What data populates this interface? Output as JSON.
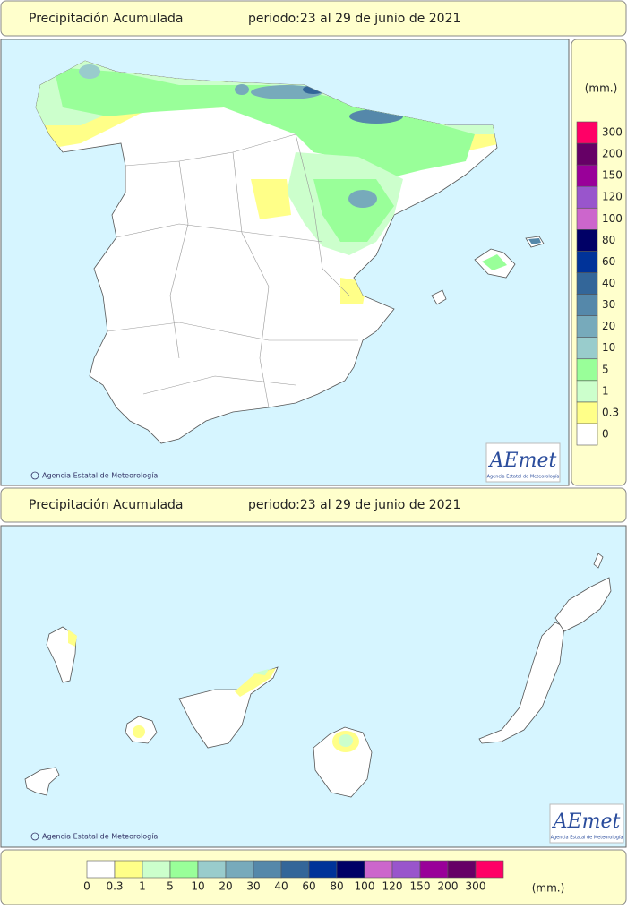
{
  "panels": [
    {
      "header": {
        "title": "Precipitación Acumulada",
        "period": "periodo:23 al 29 de junio de 2021"
      },
      "credit": "Agencia Estatal de Meteorología",
      "logo": {
        "name": "AEmet",
        "subtitle": "Agencia Estatal de Meteorología"
      }
    },
    {
      "header": {
        "title": "Precipitación Acumulada",
        "period": "periodo:23 al 29 de junio de 2021"
      },
      "credit": "Agencia Estatal de Meteorología",
      "logo": {
        "name": "AEmet",
        "subtitle": "Agencia Estatal de Meteorología"
      }
    }
  ],
  "legend": {
    "unit": "(mm.)",
    "levels": [
      {
        "value": 0,
        "color": "#ffffff"
      },
      {
        "value": 0.3,
        "color": "#ffff88"
      },
      {
        "value": 1,
        "color": "#ccffcc"
      },
      {
        "value": 5,
        "color": "#99ff99"
      },
      {
        "value": 10,
        "color": "#99cccc"
      },
      {
        "value": 20,
        "color": "#77aabb"
      },
      {
        "value": 30,
        "color": "#5588aa"
      },
      {
        "value": 40,
        "color": "#336699"
      },
      {
        "value": 60,
        "color": "#003399"
      },
      {
        "value": 80,
        "color": "#000066"
      },
      {
        "value": 100,
        "color": "#cc66cc"
      },
      {
        "value": 120,
        "color": "#9955cc"
      },
      {
        "value": 150,
        "color": "#990099"
      },
      {
        "value": 200,
        "color": "#660066"
      },
      {
        "value": 300,
        "color": "#ff0066"
      }
    ]
  }
}
